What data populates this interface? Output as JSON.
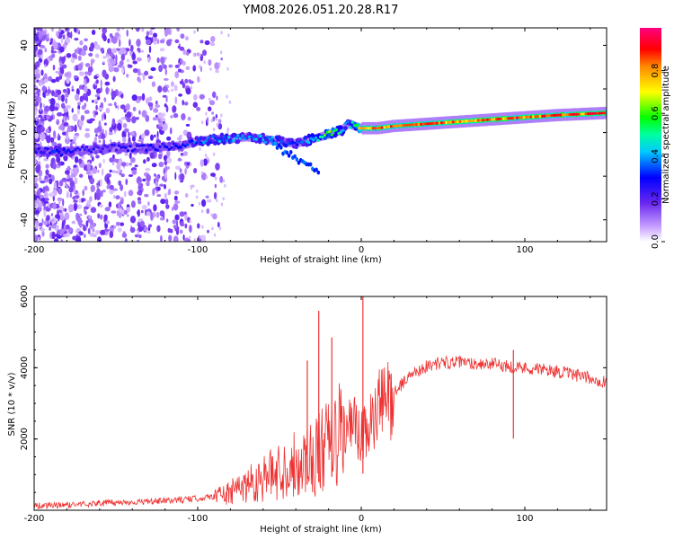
{
  "title": "YM08.2026.051.20.28.R17",
  "chart_data": [
    {
      "type": "heatmap",
      "title": "",
      "xlabel": "Height of straight line (km)",
      "ylabel": "Frequency (Hz)",
      "xlim": [
        -200,
        150
      ],
      "ylim": [
        -50,
        48
      ],
      "x_ticks": [
        -200,
        -100,
        0,
        100
      ],
      "y_ticks": [
        -40,
        -20,
        0,
        20,
        40
      ],
      "x_tick_labels": [
        "-200",
        "-100",
        "0",
        "100"
      ],
      "y_tick_labels": [
        "-40",
        "-20",
        "0",
        "20",
        "40"
      ],
      "colorbar": {
        "label": "Normalized spectral amplitude",
        "range": [
          0,
          1
        ],
        "ticks": [
          0,
          0.2,
          0.4,
          0.6,
          0.8
        ],
        "tick_labels": [
          "0.0",
          "0.2",
          "0.4",
          "0.6",
          "0.8"
        ],
        "colors": [
          "#ffffff",
          "#a050ff",
          "#0000ff",
          "#00ffff",
          "#00ff00",
          "#ffff00",
          "#ff0000",
          "#ff0080"
        ]
      },
      "ridge": {
        "x": [
          -200,
          -185,
          -170,
          -150,
          -130,
          -110,
          -100,
          -90,
          -80,
          -70,
          -60,
          -50,
          -40,
          -30,
          -20,
          -12,
          -8,
          0,
          10,
          20,
          40,
          60,
          80,
          100,
          120,
          150
        ],
        "frequency": [
          -8,
          -9,
          -8,
          -7,
          -7,
          -6,
          -4,
          -3,
          -3,
          -2,
          -3,
          -4,
          -5,
          -3,
          -1,
          1,
          4,
          2,
          2,
          3,
          4,
          5,
          6,
          7,
          8,
          9
        ],
        "amplitude": [
          0.3,
          0.35,
          0.3,
          0.28,
          0.3,
          0.32,
          0.4,
          0.42,
          0.45,
          0.4,
          0.45,
          0.42,
          0.35,
          0.5,
          0.7,
          0.5,
          0.4,
          0.85,
          0.9,
          0.9,
          0.92,
          0.95,
          0.95,
          0.95,
          0.95,
          0.95
        ]
      }
    },
    {
      "type": "line",
      "title": "",
      "xlabel": "Height of straight line (km)",
      "ylabel": "SNR (10 * v/v)",
      "xlim": [
        -200,
        150
      ],
      "ylim": [
        0,
        6000
      ],
      "x_ticks": [
        -200,
        -100,
        0,
        100
      ],
      "y_ticks": [
        2000,
        4000,
        6000
      ],
      "x_tick_labels": [
        "-200",
        "-100",
        "0",
        "100"
      ],
      "y_tick_labels": [
        "2000",
        "4000",
        "6000"
      ],
      "series": [
        {
          "name": "SNR",
          "color": "#ee3333",
          "x": [
            -200,
            -180,
            -160,
            -140,
            -120,
            -100,
            -90,
            -80,
            -75,
            -70,
            -60,
            -50,
            -40,
            -35,
            -30,
            -25,
            -20,
            -15,
            -10,
            -5,
            0,
            5,
            10,
            20,
            30,
            40,
            50,
            60,
            70,
            80,
            90,
            95,
            100,
            110,
            120,
            130,
            140,
            150
          ],
          "y": [
            120,
            150,
            200,
            230,
            260,
            330,
            400,
            480,
            600,
            750,
            900,
            1100,
            1300,
            1400,
            1500,
            1600,
            1800,
            2000,
            2200,
            2400,
            2000,
            2300,
            2800,
            3300,
            3800,
            4050,
            4150,
            4150,
            4120,
            4100,
            4050,
            4000,
            4000,
            3950,
            3900,
            3800,
            3700,
            3600
          ],
          "spikes": [
            {
              "x": -26,
              "y": 5600
            },
            {
              "x": -18,
              "y": 4850
            },
            {
              "x": -33,
              "y": 4200
            },
            {
              "x": 1,
              "y": 6000
            },
            {
              "x": 93,
              "y": 4500
            }
          ]
        }
      ]
    }
  ]
}
